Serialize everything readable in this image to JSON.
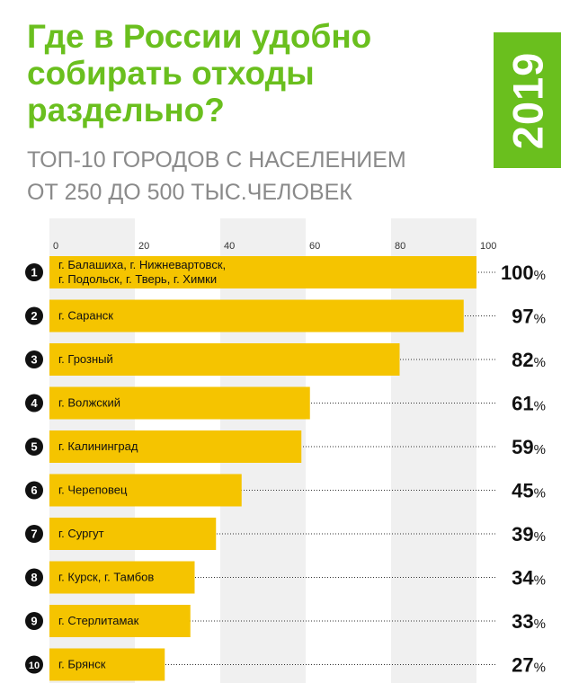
{
  "title_lines": [
    "Где в России удобно",
    "собирать отходы",
    "раздельно?"
  ],
  "subtitle_lines": [
    "ТОП-10 ГОРОДОВ С НАСЕЛЕНИЕМ",
    "ОТ 250 ДО 500 ТЫС.ЧЕЛОВЕК"
  ],
  "year": "2019",
  "colors": {
    "accent": "#6abf1e",
    "bar": "#f5c400",
    "band": "#f0f0f0",
    "text": "#111111",
    "subtitle": "#8a8a8a"
  },
  "chart_data": {
    "type": "bar",
    "orientation": "horizontal",
    "x_ticks": [
      0,
      20,
      40,
      60,
      80,
      100
    ],
    "xlim": [
      0,
      100
    ],
    "value_suffix": "%",
    "rows": [
      {
        "rank": "1",
        "label_lines": [
          "г. Балашиха, г. Нижневартовск,",
          "г. Подольск, г. Тверь, г. Химки"
        ],
        "value": 100
      },
      {
        "rank": "2",
        "label_lines": [
          "г. Саранск"
        ],
        "value": 97
      },
      {
        "rank": "3",
        "label_lines": [
          "г. Грозный"
        ],
        "value": 82
      },
      {
        "rank": "4",
        "label_lines": [
          "г. Волжский"
        ],
        "value": 61
      },
      {
        "rank": "5",
        "label_lines": [
          "г. Калининград"
        ],
        "value": 59
      },
      {
        "rank": "6",
        "label_lines": [
          "г. Череповец"
        ],
        "value": 45
      },
      {
        "rank": "7",
        "label_lines": [
          "г. Сургут"
        ],
        "value": 39
      },
      {
        "rank": "8",
        "label_lines": [
          "г. Курск, г. Тамбов"
        ],
        "value": 34
      },
      {
        "rank": "9",
        "label_lines": [
          "г. Стерлитамак"
        ],
        "value": 33
      },
      {
        "rank": "10",
        "label_lines": [
          "г. Брянск"
        ],
        "value": 27
      }
    ]
  }
}
